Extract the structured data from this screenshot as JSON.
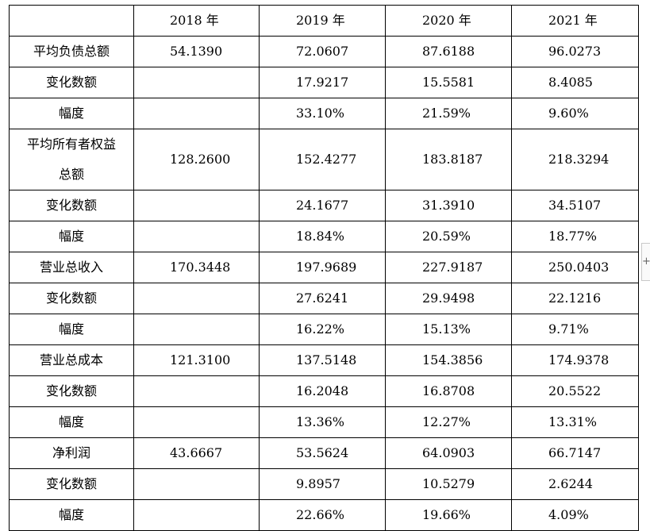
{
  "header": {
    "label": "",
    "years": [
      "2018 年",
      "2019 年",
      "2020 年",
      "2021 年"
    ]
  },
  "rows": [
    {
      "label": "平均负债总额",
      "v": [
        "54.1390",
        "72.0607",
        "87.6188",
        "96.0273"
      ]
    },
    {
      "label": "变化数额",
      "v": [
        "",
        "17.9217",
        "15.5581",
        "8.4085"
      ]
    },
    {
      "label": "幅度",
      "v": [
        "",
        "33.10%",
        "21.59%",
        "9.60%"
      ]
    },
    {
      "label": "平均所有者权益总额",
      "label_line1": "平均所有者权益",
      "label_line2": "总额",
      "v": [
        "128.2600",
        "152.4277",
        "183.8187",
        "218.3294"
      ]
    },
    {
      "label": "变化数额",
      "v": [
        "",
        "24.1677",
        "31.3910",
        "34.5107"
      ]
    },
    {
      "label": "幅度",
      "v": [
        "",
        "18.84%",
        "20.59%",
        "18.77%"
      ]
    },
    {
      "label": "营业总收入",
      "v": [
        "170.3448",
        "197.9689",
        "227.9187",
        "250.0403"
      ]
    },
    {
      "label": "变化数额",
      "v": [
        "",
        "27.6241",
        "29.9498",
        "22.1216"
      ]
    },
    {
      "label": "幅度",
      "v": [
        "",
        "16.22%",
        "15.13%",
        "9.71%"
      ]
    },
    {
      "label": "营业总成本",
      "v": [
        "121.3100",
        "137.5148",
        "154.3856",
        "174.9378"
      ]
    },
    {
      "label": "变化数额",
      "v": [
        "",
        "16.2048",
        "16.8708",
        "20.5522"
      ]
    },
    {
      "label": "幅度",
      "v": [
        "",
        "13.36%",
        "12.27%",
        "13.31%"
      ]
    },
    {
      "label": "净利润",
      "v": [
        "43.6667",
        "53.5624",
        "64.0903",
        "66.7147"
      ]
    },
    {
      "label": "变化数额",
      "v": [
        "",
        "9.8957",
        "10.5279",
        "2.6244"
      ]
    },
    {
      "label": "幅度",
      "v": [
        "",
        "22.66%",
        "19.66%",
        "4.09%"
      ]
    }
  ],
  "side_button": {
    "label": "+"
  }
}
